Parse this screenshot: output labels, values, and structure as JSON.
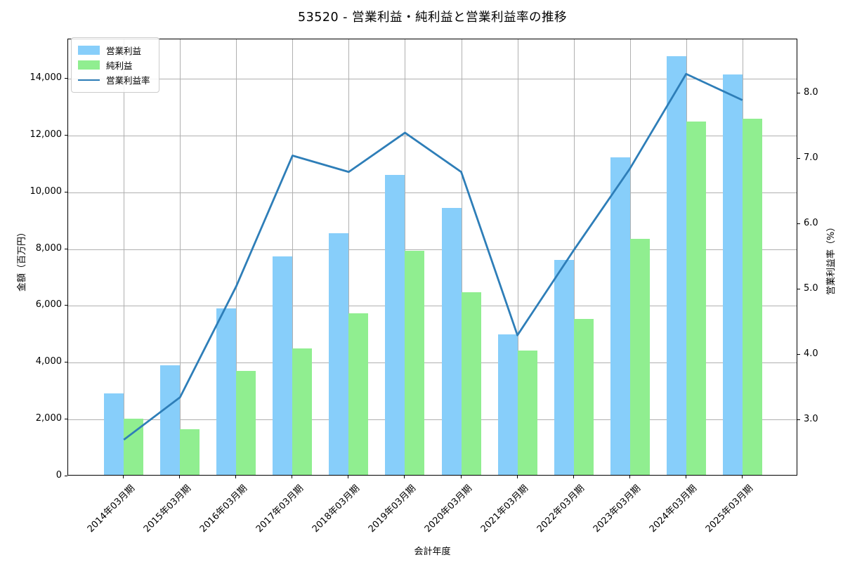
{
  "chart_data": {
    "type": "bar+line",
    "title": "53520 - 営業利益・純利益と営業利益率の推移",
    "xlabel": "会計年度",
    "ylabel_left": "金額（百万円）",
    "ylabel_right": "営業利益率（%）",
    "categories": [
      "2014年03月期",
      "2015年03月期",
      "2016年03月期",
      "2017年03月期",
      "2018年03月期",
      "2019年03月期",
      "2020年03月期",
      "2021年03月期",
      "2022年03月期",
      "2023年03月期",
      "2024年03月期",
      "2025年03月期"
    ],
    "series": [
      {
        "name": "営業利益",
        "type": "bar",
        "axis": "left",
        "color": "#87CEFA",
        "values": [
          2880,
          3850,
          5860,
          7680,
          8500,
          10550,
          9400,
          4950,
          7580,
          11190,
          14730,
          14100
        ]
      },
      {
        "name": "純利益",
        "type": "bar",
        "axis": "left",
        "color": "#90EE90",
        "values": [
          1980,
          1600,
          3670,
          4440,
          5680,
          7880,
          6440,
          4370,
          5500,
          8300,
          12450,
          12550
        ]
      },
      {
        "name": "営業利益率",
        "type": "line",
        "axis": "right",
        "color": "#2E7EB8",
        "values": [
          2.7,
          3.35,
          5.05,
          7.05,
          6.8,
          7.4,
          6.8,
          4.3,
          5.6,
          6.85,
          8.3,
          7.9
        ]
      }
    ],
    "yticks_left": [
      0,
      2000,
      4000,
      6000,
      8000,
      10000,
      12000,
      14000
    ],
    "ytick_labels_left": [
      "0",
      "2,000",
      "4,000",
      "6,000",
      "8,000",
      "10,000",
      "12,000",
      "14,000"
    ],
    "yticks_right": [
      3,
      4,
      5,
      6,
      7,
      8
    ],
    "ytick_labels_right": [
      "3.0",
      "4.0",
      "5.0",
      "6.0",
      "7.0",
      "8.0"
    ],
    "ylim_left": [
      0,
      15383
    ],
    "ylim_right": [
      2.14,
      8.83
    ],
    "grid": true,
    "legend_position": "upper left"
  },
  "colors": {
    "grid": "#B0B0B0",
    "frame": "#000000",
    "background": "#FFFFFF",
    "legend_border": "#CCCCCC"
  }
}
